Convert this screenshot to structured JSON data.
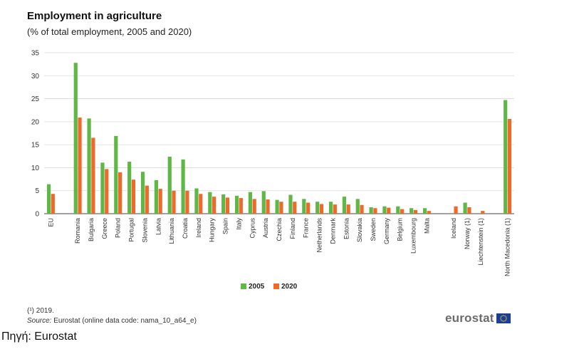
{
  "title": "Employment in agriculture",
  "subtitle": "(% of total employment,  2005 and 2020)",
  "footnote": "(¹) 2019.",
  "source_label": "Source:",
  "source_text": " Eurostat (online data code: nama_10_a64_e)",
  "logo_text": "eurostat",
  "caption": "Πηγή: Eurostat",
  "colors": {
    "s2005": "#5fb746",
    "s2020": "#ee6a2b",
    "grid": "#d9d9d9",
    "axis": "#444444"
  },
  "chart_data": {
    "type": "bar",
    "title": "Employment in agriculture",
    "subtitle": "(% of total employment,  2005 and 2020)",
    "categories": [
      "EU",
      "",
      "Romania",
      "Bulgaria",
      "Greece",
      "Poland",
      "Portugal",
      "Slovenia",
      "Latvia",
      "Lithuania",
      "Croatia",
      "Ireland",
      "Hungary",
      "Spain",
      "Italy",
      "Cyprus",
      "Austria",
      "Czechia",
      "Finland",
      "France",
      "Netherlands",
      "Denmark",
      "Estonia",
      "Slovakia",
      "Sweden",
      "Germany",
      "Belgium",
      "Luxembourg",
      "Malta",
      "",
      "Iceland",
      "Norway (1)",
      "Liechtenstein (1)",
      "",
      "North Macedonia (1)"
    ],
    "series": [
      {
        "name": "2005",
        "values": [
          6.4,
          null,
          32.8,
          20.7,
          11.1,
          16.9,
          11.3,
          9.1,
          7.3,
          12.4,
          11.8,
          5.5,
          4.7,
          4.2,
          3.9,
          4.7,
          4.9,
          3.0,
          4.1,
          3.2,
          2.6,
          2.6,
          3.7,
          3.2,
          1.4,
          1.6,
          1.6,
          1.2,
          1.2,
          null,
          null,
          2.4,
          null,
          null,
          24.7
        ]
      },
      {
        "name": "2020",
        "values": [
          4.3,
          null,
          20.9,
          16.5,
          9.7,
          9.0,
          7.4,
          6.1,
          5.4,
          5.0,
          5.0,
          4.3,
          3.7,
          3.5,
          3.4,
          3.2,
          3.1,
          2.6,
          2.6,
          2.4,
          2.1,
          2.0,
          2.0,
          1.9,
          1.2,
          1.3,
          1.0,
          0.8,
          0.6,
          null,
          1.6,
          1.4,
          0.6,
          null,
          20.6
        ]
      }
    ],
    "ylim": [
      0,
      35
    ],
    "yticks": [
      0,
      5,
      10,
      15,
      20,
      25,
      30,
      35
    ],
    "grid": true,
    "legend_position": "bottom-center"
  }
}
